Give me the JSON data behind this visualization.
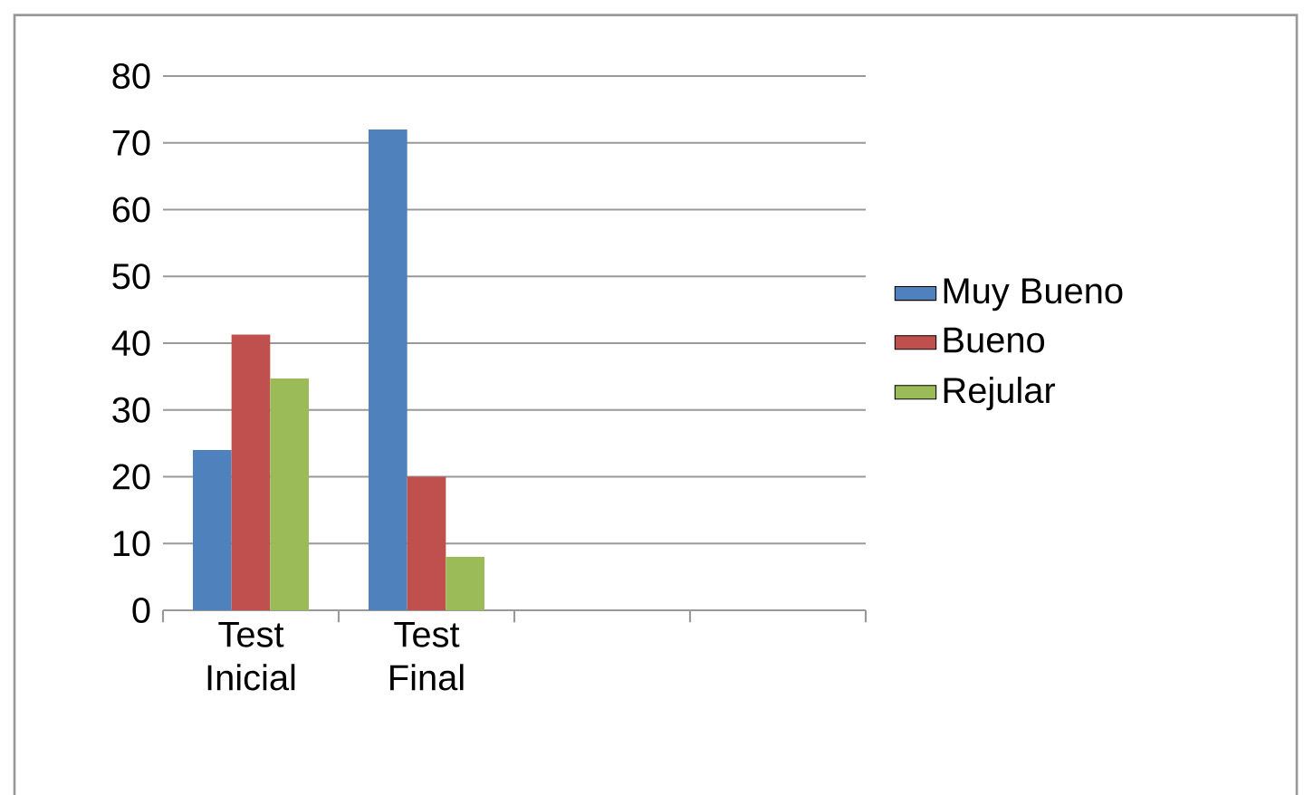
{
  "chart_data": {
    "type": "bar",
    "categories": [
      "Test Inicial",
      "Test Final",
      null,
      null
    ],
    "series": [
      {
        "name": "Muy Bueno",
        "color": "#4f81bd",
        "values": [
          24,
          72,
          null,
          null
        ]
      },
      {
        "name": "Bueno",
        "color": "#c0504d",
        "values": [
          41.3,
          20,
          null,
          null
        ]
      },
      {
        "name": "Rejular",
        "color": "#9bbb59",
        "values": [
          34.7,
          8,
          null,
          null
        ]
      }
    ],
    "ylim": [
      0,
      80
    ],
    "yticks": [
      0,
      10,
      20,
      30,
      40,
      50,
      60,
      70,
      80
    ],
    "grid": "y",
    "legend": "right"
  }
}
